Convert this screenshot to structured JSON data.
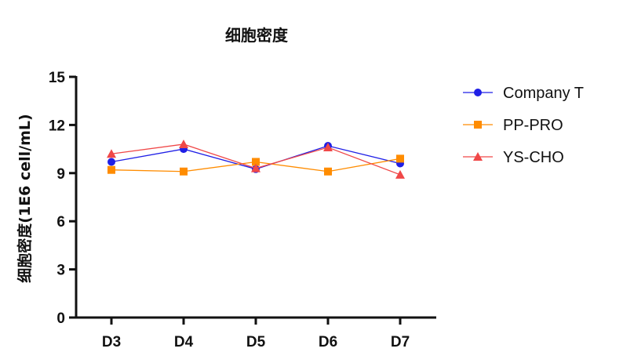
{
  "chart_data": {
    "type": "line",
    "title": "细胞密度",
    "xlabel": "",
    "ylabel": "细胞密度(1E6 cell/mL)",
    "categories": [
      "D3",
      "D4",
      "D5",
      "D6",
      "D7"
    ],
    "yticks": [
      0,
      3,
      6,
      9,
      12,
      15
    ],
    "ylim": [
      0,
      15
    ],
    "grid": false,
    "legend_position": "right",
    "series": [
      {
        "name": "Company T",
        "color": "#1f1fe6",
        "marker": "circle",
        "values": [
          9.7,
          10.5,
          9.25,
          10.7,
          9.6
        ]
      },
      {
        "name": "PP-PRO",
        "color": "#ff8c00",
        "marker": "square",
        "values": [
          9.2,
          9.1,
          9.7,
          9.1,
          9.9
        ]
      },
      {
        "name": "YS-CHO",
        "color": "#f04848",
        "marker": "triangle",
        "values": [
          10.2,
          10.8,
          9.3,
          10.6,
          8.9
        ]
      }
    ]
  }
}
